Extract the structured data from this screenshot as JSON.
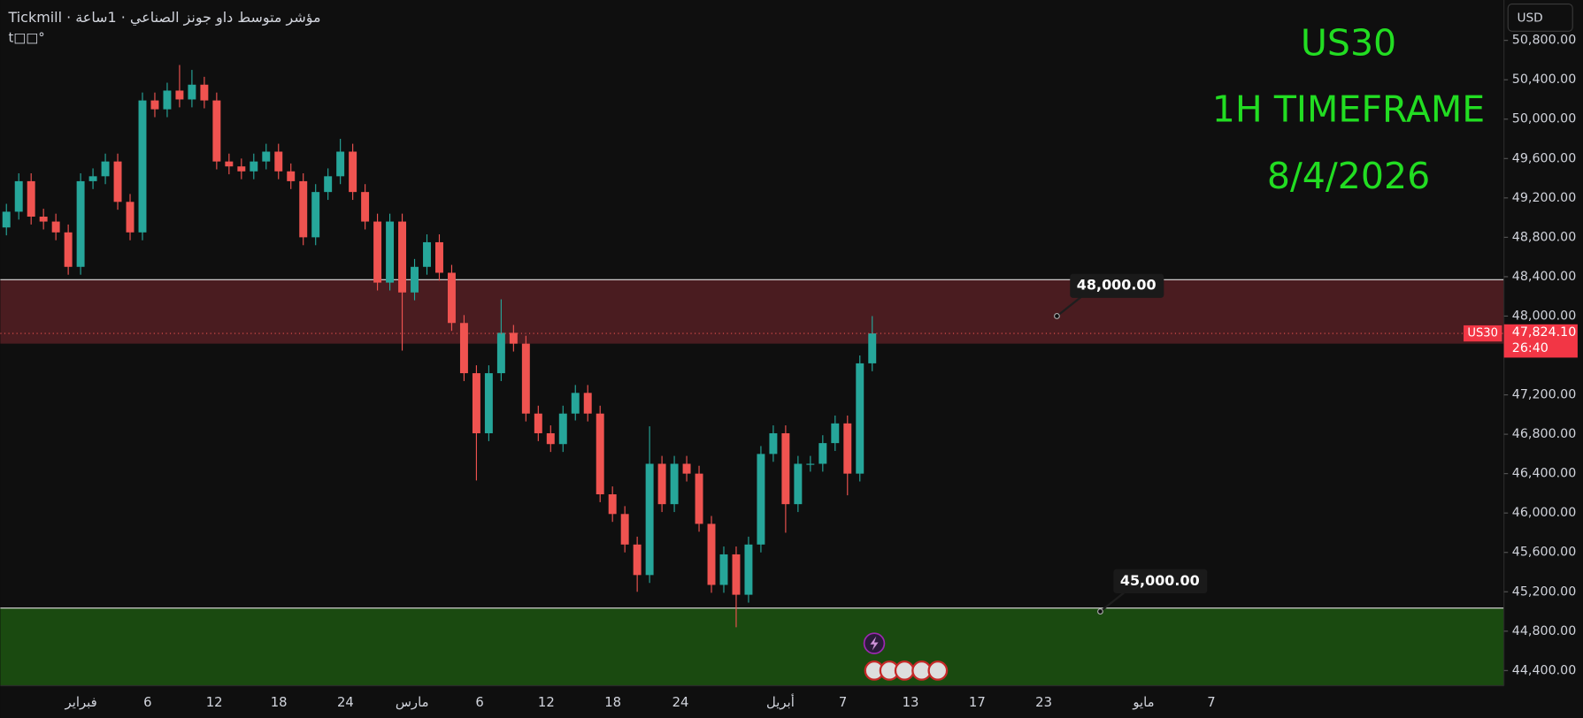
{
  "chart_data": {
    "type": "candlestick",
    "header": "Tickmill · مؤشر متوسط داو جونز الصناعي · 1ساعة",
    "header_sub": "t□□°",
    "currency": "USD",
    "title_lines": [
      "US30",
      "1H TIMEFRAME",
      "8/4/2026"
    ],
    "title_color": "#22dd22",
    "up_color": "#26a69a",
    "down_color": "#ef5350",
    "open": [
      48900,
      49060,
      49370,
      49010,
      48960,
      48850,
      48500,
      49370,
      49420,
      49570,
      49160,
      48850,
      50190,
      50100,
      50290,
      50200,
      50350,
      50190,
      49570,
      49520,
      49470,
      49570,
      49670,
      49470,
      49370,
      48800,
      49260,
      49420,
      49670,
      49260,
      48960,
      48340,
      48960,
      48240,
      48500,
      48750,
      48440,
      47930,
      47420,
      46810,
      47420,
      47830,
      47720,
      47010,
      46810,
      46700,
      47010,
      47220,
      47010,
      46190,
      45990,
      45680,
      45370,
      46500,
      46090,
      46500,
      46400,
      45890,
      45270,
      45580,
      45170,
      45680,
      46600,
      46810,
      46090,
      46500,
      46500,
      46710,
      46910,
      46400,
      47520
    ],
    "high": [
      49140,
      49450,
      49450,
      49090,
      49040,
      48930,
      49450,
      49500,
      49650,
      49650,
      49240,
      50270,
      50270,
      50370,
      50550,
      50500,
      50430,
      50270,
      49650,
      49600,
      49650,
      49750,
      49750,
      49550,
      49450,
      49340,
      49500,
      49800,
      49750,
      49340,
      49040,
      49040,
      49040,
      48580,
      48830,
      48830,
      48520,
      48010,
      47500,
      47500,
      48170,
      47910,
      47800,
      47090,
      46890,
      47090,
      47300,
      47300,
      47090,
      46270,
      46070,
      45760,
      46880,
      46580,
      46580,
      46580,
      46480,
      45970,
      45660,
      45660,
      45760,
      46680,
      46890,
      46890,
      46580,
      46580,
      46790,
      46990,
      46990,
      47600,
      48000
    ],
    "low": [
      48820,
      48980,
      48930,
      48880,
      48770,
      48420,
      48420,
      49290,
      49340,
      49080,
      48770,
      48770,
      50020,
      50020,
      50120,
      50120,
      50110,
      49490,
      49440,
      49390,
      49390,
      49490,
      49390,
      49290,
      48720,
      48720,
      49180,
      49340,
      49180,
      48880,
      48260,
      48260,
      47650,
      48160,
      48420,
      48360,
      47850,
      47340,
      46330,
      46730,
      47340,
      47640,
      46930,
      46730,
      46620,
      46620,
      46940,
      46930,
      46110,
      45910,
      45600,
      45200,
      45290,
      46010,
      46010,
      46320,
      45810,
      45190,
      45190,
      44840,
      45090,
      45600,
      46520,
      45800,
      46010,
      46420,
      46420,
      46630,
      46180,
      46320,
      47440
    ],
    "close": [
      49060,
      49370,
      49010,
      48960,
      48850,
      48500,
      49370,
      49420,
      49570,
      49160,
      48850,
      50190,
      50100,
      50290,
      50200,
      50350,
      50190,
      49570,
      49520,
      49470,
      49570,
      49670,
      49470,
      49370,
      48800,
      49260,
      49420,
      49670,
      49260,
      48960,
      48340,
      48960,
      48240,
      48500,
      48750,
      48440,
      47930,
      47420,
      46810,
      47420,
      47830,
      47720,
      47010,
      46810,
      46700,
      47010,
      47220,
      47010,
      46190,
      45990,
      45680,
      45370,
      46500,
      46090,
      46500,
      46400,
      45890,
      45270,
      45580,
      45170,
      45680,
      46600,
      46810,
      46090,
      46500,
      46500,
      46710,
      46910,
      46400,
      47520,
      47824.1
    ],
    "last_price": {
      "value": 47824.1,
      "label": "47,824.10"
    },
    "countdown": "26:40",
    "symbol_tag": "US30",
    "zones": [
      {
        "from": 47720,
        "to": 48370,
        "color": "#4a1c20"
      },
      {
        "from": 44246,
        "to": 45035,
        "color": "#1a4a10"
      }
    ],
    "annotations": [
      {
        "text": "48,000.00",
        "value": 48000
      },
      {
        "text": "45,000.00",
        "value": 45000
      }
    ],
    "ylim": [
      44246,
      51210
    ],
    "yticks": [
      {
        "value": 44400,
        "label": "44,400.00"
      },
      {
        "value": 44800,
        "label": "44,800.00"
      },
      {
        "value": 45200,
        "label": "45,200.00"
      },
      {
        "value": 45600,
        "label": "45,600.00"
      },
      {
        "value": 46000,
        "label": "46,000.00"
      },
      {
        "value": 46400,
        "label": "46,400.00"
      },
      {
        "value": 46800,
        "label": "46,800.00"
      },
      {
        "value": 47200,
        "label": "47,200.00"
      },
      {
        "value": 48000,
        "label": "48,000.00"
      },
      {
        "value": 48400,
        "label": "48,400.00"
      },
      {
        "value": 48800,
        "label": "48,800.00"
      },
      {
        "value": 49200,
        "label": "49,200.00"
      },
      {
        "value": 49600,
        "label": "49,600.00"
      },
      {
        "value": 50000,
        "label": "50,000.00"
      },
      {
        "value": 50400,
        "label": "50,400.00"
      },
      {
        "value": 50800,
        "label": "50,800.00"
      }
    ],
    "x_labels": [
      "فبراير",
      "6",
      "12",
      "18",
      "24",
      "مارس",
      "6",
      "12",
      "18",
      "24",
      "أبريل",
      "7",
      "13",
      "17",
      "23",
      "مايو",
      "7"
    ]
  }
}
